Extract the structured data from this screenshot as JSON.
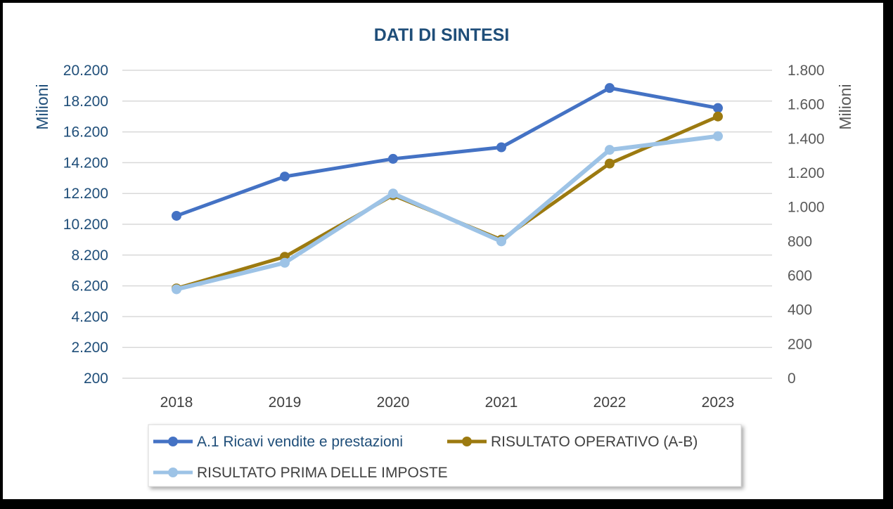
{
  "chart_data": {
    "type": "line",
    "title": "DATI DI SINTESI",
    "categories": [
      "2018",
      "2019",
      "2020",
      "2021",
      "2022",
      "2023"
    ],
    "y_left": {
      "label": "Milioni",
      "min": 200,
      "max": 20200,
      "ticks": [
        200,
        2200,
        4200,
        6200,
        8200,
        10200,
        12200,
        14200,
        16200,
        18200,
        20200
      ],
      "tick_labels": [
        "200",
        "2.200",
        "4.200",
        "6.200",
        "8.200",
        "10.200",
        "12.200",
        "14.200",
        "16.200",
        "18.200",
        "20.200"
      ]
    },
    "y_right": {
      "label": "Milioni",
      "min": 0,
      "max": 1800,
      "ticks": [
        0,
        200,
        400,
        600,
        800,
        1000,
        1200,
        1400,
        1600,
        1800
      ],
      "tick_labels": [
        "0",
        "200",
        "400",
        "600",
        "800",
        "1.000",
        "1.200",
        "1.400",
        "1.600",
        "1.800"
      ]
    },
    "series": [
      {
        "name": "A.1 Ricavi vendite e prestazioni",
        "axis": "left",
        "color": "#4472C4",
        "values": [
          10750,
          13300,
          14450,
          15200,
          19050,
          17750
        ]
      },
      {
        "name": "RISULTATO OPERATIVO (A-B)",
        "axis": "right",
        "color": "#9C7A10",
        "values": [
          525,
          710,
          1070,
          810,
          1255,
          1530
        ]
      },
      {
        "name": "RISULTATO PRIMA DELLE IMPOSTE",
        "axis": "right",
        "color": "#9DC3E6",
        "values": [
          520,
          675,
          1080,
          800,
          1335,
          1415
        ]
      }
    ],
    "grid": true,
    "legend_position": "bottom"
  }
}
